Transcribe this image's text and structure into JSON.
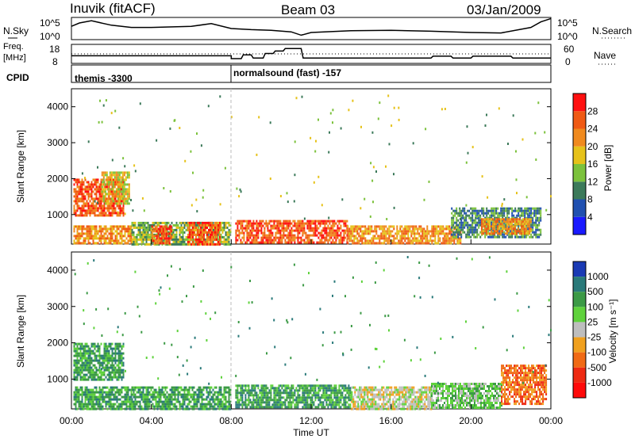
{
  "header": {
    "station": "Inuvik (fitACF)",
    "beam": "Beam 03",
    "date": "03/Jan/2009"
  },
  "noise_panel": {
    "left_label": "N.Sky",
    "left_ticks": [
      "10^5",
      "10^0"
    ],
    "right_label": "N.Search",
    "right_ticks": [
      "10^5",
      "10^0"
    ]
  },
  "freq_panel": {
    "left_label_line1": "Freq.",
    "left_label_line2": "[MHz]",
    "left_ticks": [
      "18",
      "8"
    ],
    "right_label": "Nave",
    "right_ticks": [
      "60",
      "0"
    ]
  },
  "cpid_panel": {
    "label": "CPID",
    "segments": [
      {
        "start_hour": 0,
        "text": "themis -3300"
      },
      {
        "start_hour": 8,
        "text": "normalsound (fast) -157"
      }
    ]
  },
  "xaxis": {
    "label": "Time UT",
    "ticks": [
      "00:00",
      "04:00",
      "08:00",
      "12:00",
      "16:00",
      "20:00",
      "00:00"
    ],
    "tick_hours": [
      0,
      4,
      8,
      12,
      16,
      20,
      24
    ]
  },
  "yaxis": {
    "label": "Slant Range [km]",
    "ticks": [
      "1000",
      "2000",
      "3000",
      "4000"
    ],
    "tick_values": [
      1000,
      2000,
      3000,
      4000
    ],
    "ylim": [
      180,
      4500
    ]
  },
  "power_colorbar": {
    "label": "Power [dB]",
    "tick_labels": [
      "4",
      "8",
      "12",
      "16",
      "20",
      "24",
      "28"
    ],
    "levels": [
      0,
      4,
      8,
      12,
      16,
      20,
      24,
      28,
      32
    ],
    "colors": [
      "#1a1aff",
      "#2050b0",
      "#3c7a5a",
      "#7cc23c",
      "#e6c21a",
      "#f08a1e",
      "#f05a14",
      "#ff1010"
    ]
  },
  "velocity_colorbar": {
    "label": "Velocity [m s⁻¹]",
    "tick_labels": [
      "1000",
      "500",
      "100",
      "25",
      "-25",
      "-100",
      "-500",
      "-1000"
    ],
    "colors": [
      "#1a3ab4",
      "#2a7a7a",
      "#3c9a46",
      "#5fd23c",
      "#bebebe",
      "#f0a01e",
      "#f06a14",
      "#ee2a12",
      "#ff0a0a"
    ]
  },
  "chart_data": {
    "type": "heatmap",
    "x_range_hours": [
      0,
      24
    ],
    "y_range_km": [
      180,
      4500
    ],
    "cpid_change_hour": 8.0,
    "noise_sky_trace": [
      [
        0.0,
        0.6
      ],
      [
        0.4,
        0.75
      ],
      [
        1.0,
        0.85
      ],
      [
        2.0,
        0.65
      ],
      [
        3.0,
        0.55
      ],
      [
        4.0,
        0.55
      ],
      [
        6.0,
        0.6
      ],
      [
        7.0,
        0.72
      ],
      [
        8.0,
        0.5
      ],
      [
        9.0,
        0.45
      ],
      [
        10.0,
        0.42
      ],
      [
        11.0,
        0.35
      ],
      [
        11.5,
        0.2
      ],
      [
        12.0,
        0.32
      ],
      [
        14.0,
        0.4
      ],
      [
        16.0,
        0.42
      ],
      [
        18.0,
        0.38
      ],
      [
        20.0,
        0.32
      ],
      [
        21.5,
        0.3
      ],
      [
        23.0,
        0.55
      ],
      [
        23.5,
        0.8
      ],
      [
        24.0,
        0.95
      ]
    ],
    "freq_mhz_trace": [
      [
        0.0,
        12.0
      ],
      [
        8.0,
        12.0
      ],
      [
        8.0,
        10.5
      ],
      [
        8.5,
        10.5
      ],
      [
        8.6,
        12.5
      ],
      [
        9.0,
        12.5
      ],
      [
        9.1,
        10.8
      ],
      [
        9.6,
        10.8
      ],
      [
        9.7,
        13.2
      ],
      [
        10.1,
        13.2
      ],
      [
        10.2,
        14.5
      ],
      [
        10.6,
        14.5
      ],
      [
        10.7,
        15.8
      ],
      [
        11.5,
        15.8
      ],
      [
        11.6,
        10.8
      ],
      [
        18.0,
        10.8
      ],
      [
        18.1,
        11.8
      ],
      [
        19.0,
        11.8
      ],
      [
        19.1,
        10.8
      ],
      [
        20.0,
        10.8
      ],
      [
        20.1,
        11.8
      ],
      [
        22.0,
        11.8
      ],
      [
        22.1,
        10.8
      ],
      [
        24.0,
        10.8
      ]
    ],
    "nave_reference": 20,
    "power_regions": [
      {
        "t0": 0.1,
        "t1": 2.6,
        "r0": 1000,
        "r1": 2000,
        "level": 28
      },
      {
        "t0": 1.5,
        "t1": 2.9,
        "r0": 1300,
        "r1": 2200,
        "level": 20
      },
      {
        "t0": 0.1,
        "t1": 3.0,
        "r0": 200,
        "r1": 700,
        "level": 24
      },
      {
        "t0": 3.0,
        "t1": 8.0,
        "r0": 200,
        "r1": 800,
        "level": 16
      },
      {
        "t0": 4.0,
        "t1": 5.0,
        "r0": 200,
        "r1": 700,
        "level": 28
      },
      {
        "t0": 5.8,
        "t1": 7.4,
        "r0": 200,
        "r1": 800,
        "level": 28
      },
      {
        "t0": 8.2,
        "t1": 13.8,
        "r0": 200,
        "r1": 850,
        "level": 28
      },
      {
        "t0": 13.8,
        "t1": 19.5,
        "r0": 200,
        "r1": 700,
        "level": 24
      },
      {
        "t0": 19.0,
        "t1": 23.5,
        "r0": 400,
        "r1": 1200,
        "level": 12
      },
      {
        "t0": 20.5,
        "t1": 23.0,
        "r0": 500,
        "r1": 900,
        "level": 24
      }
    ],
    "velocity_regions": [
      {
        "t0": 0.1,
        "t1": 2.6,
        "r0": 1000,
        "r1": 2000,
        "bin": 2
      },
      {
        "t0": 0.1,
        "t1": 3.0,
        "r0": 200,
        "r1": 800,
        "bin": 2
      },
      {
        "t0": 3.0,
        "t1": 8.0,
        "r0": 200,
        "r1": 800,
        "bin": 2
      },
      {
        "t0": 8.2,
        "t1": 14.0,
        "r0": 200,
        "r1": 850,
        "bin": 2
      },
      {
        "t0": 14.0,
        "t1": 18.0,
        "r0": 200,
        "r1": 800,
        "bin": 4
      },
      {
        "t0": 18.0,
        "t1": 21.5,
        "r0": 200,
        "r1": 900,
        "bin": 3
      },
      {
        "t0": 21.5,
        "t1": 23.8,
        "r0": 300,
        "r1": 1400,
        "bin": 6
      }
    ]
  }
}
